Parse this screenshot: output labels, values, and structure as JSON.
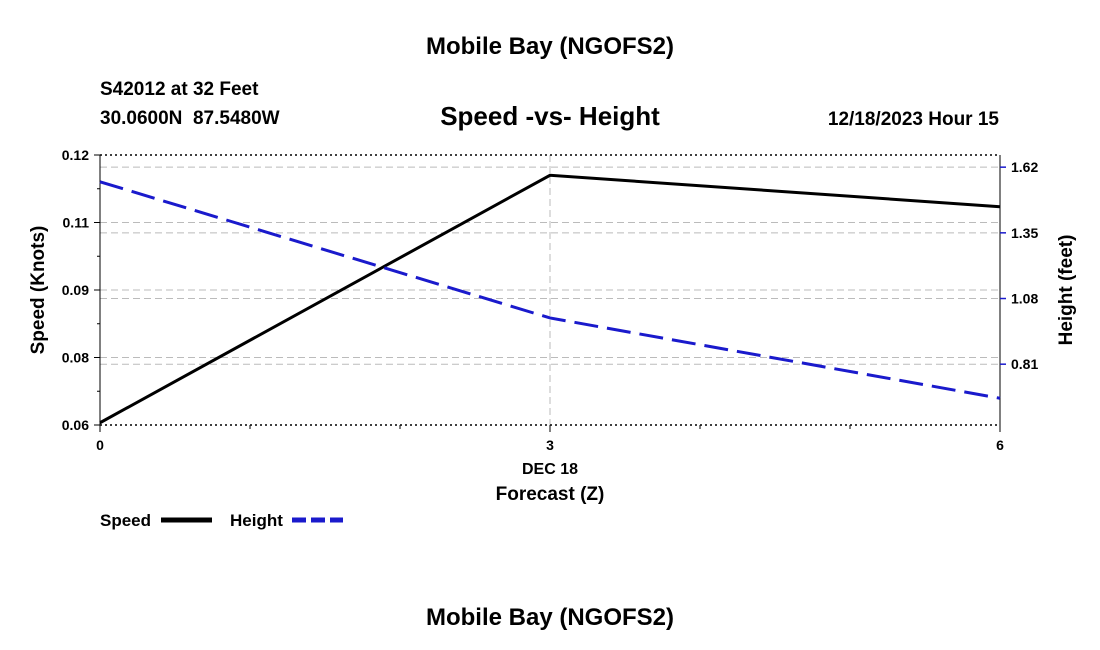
{
  "page_title": "Mobile Bay (NGOFS2)",
  "footer_title": "Mobile Bay (NGOFS2)",
  "station": {
    "label": "S42012 at 32 Feet",
    "coords": "30.0600N  87.5480W"
  },
  "datetime": "12/18/2023 Hour 15",
  "colors": {
    "speed": "#000000",
    "height": "#1a1acc",
    "grid": "#bbbbbb"
  },
  "chart_data": {
    "type": "line",
    "title": "Speed -vs- Height",
    "xlabel": "Forecast (Z)",
    "x_date_label": "DEC 18",
    "ylabel_left": "Speed (Knots)",
    "ylabel_right": "Height (feet)",
    "x": [
      0,
      3,
      6
    ],
    "x_ticks": [
      "0",
      "3",
      "6"
    ],
    "xlim": [
      0,
      6
    ],
    "ylim_left": [
      0.06,
      0.12
    ],
    "ylim_right": [
      0.56,
      1.67
    ],
    "left_ticks": [
      {
        "value": 0.06,
        "label": "0.06"
      },
      {
        "value": 0.075,
        "label": "0.08"
      },
      {
        "value": 0.09,
        "label": "0.09"
      },
      {
        "value": 0.105,
        "label": "0.11"
      },
      {
        "value": 0.12,
        "label": "0.12"
      }
    ],
    "right_ticks": [
      {
        "value": 0.81,
        "label": "0.81"
      },
      {
        "value": 1.08,
        "label": "1.08"
      },
      {
        "value": 1.35,
        "label": "1.35"
      },
      {
        "value": 1.62,
        "label": "1.62"
      }
    ],
    "series": [
      {
        "name": "Speed",
        "axis": "left",
        "style": "solid",
        "x": [
          0,
          3,
          6
        ],
        "values": [
          0.0605,
          0.1155,
          0.1085
        ]
      },
      {
        "name": "Height",
        "axis": "right",
        "style": "dashed",
        "x": [
          0,
          3,
          6
        ],
        "values": [
          1.56,
          1.0,
          0.67
        ]
      }
    ],
    "legend": [
      "Speed",
      "Height"
    ],
    "legend_position": "bottom-left",
    "grid": true
  }
}
